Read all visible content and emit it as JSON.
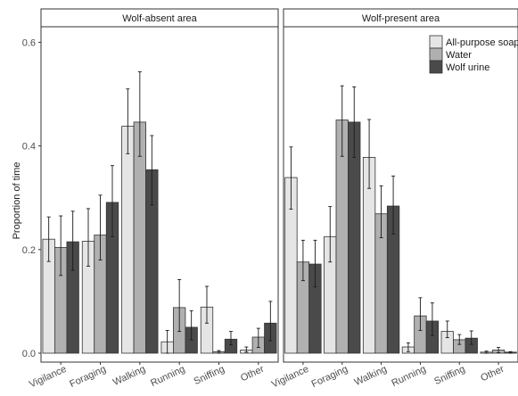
{
  "chart_data": {
    "type": "bar",
    "ylabel": "Proportion of time",
    "xlabel": "",
    "ylim": [
      0,
      0.63
    ],
    "yticks": [
      "0.0",
      "0.2",
      "0.4",
      "0.6"
    ],
    "ytick_values": [
      0,
      0.2,
      0.4,
      0.6
    ],
    "grid": false,
    "legend_position": "top-right",
    "series_names": [
      "All-purpose soap",
      "Water",
      "Wolf urine"
    ],
    "series_colors": [
      "#e5e5e5",
      "#b0b0b0",
      "#4a4a4a"
    ],
    "categories": [
      "Vigilance",
      "Foraging",
      "Walking",
      "Running",
      "Sniffing",
      "Other"
    ],
    "panels": [
      {
        "title": "Wolf-absent area",
        "series": [
          {
            "name": "All-purpose soap",
            "values": [
              0.22,
              0.216,
              0.438,
              0.022,
              0.089,
              0.006
            ],
            "err_low": [
              0.177,
              0.168,
              0.385,
              0.0,
              0.058,
              0.002
            ],
            "err_high": [
              0.263,
              0.279,
              0.51,
              0.044,
              0.129,
              0.012
            ]
          },
          {
            "name": "Water",
            "values": [
              0.204,
              0.228,
              0.446,
              0.088,
              0.003,
              0.031
            ],
            "err_low": [
              0.15,
              0.18,
              0.38,
              0.042,
              0.0,
              0.011
            ],
            "err_high": [
              0.265,
              0.305,
              0.543,
              0.142,
              0.005,
              0.048
            ]
          },
          {
            "name": "Wolf urine",
            "values": [
              0.215,
              0.291,
              0.354,
              0.05,
              0.027,
              0.058
            ],
            "err_low": [
              0.16,
              0.225,
              0.286,
              0.026,
              0.016,
              0.024
            ],
            "err_high": [
              0.274,
              0.362,
              0.42,
              0.082,
              0.042,
              0.1
            ]
          }
        ]
      },
      {
        "title": "Wolf-present area",
        "series": [
          {
            "name": "All-purpose soap",
            "values": [
              0.339,
              0.225,
              0.378,
              0.012,
              0.042,
              0.002
            ],
            "err_low": [
              0.278,
              0.176,
              0.318,
              0.003,
              0.03,
              0.0
            ],
            "err_high": [
              0.398,
              0.283,
              0.451,
              0.02,
              0.062,
              0.004
            ]
          },
          {
            "name": "Water",
            "values": [
              0.176,
              0.45,
              0.269,
              0.072,
              0.026,
              0.006
            ],
            "err_low": [
              0.14,
              0.38,
              0.223,
              0.044,
              0.017,
              0.001
            ],
            "err_high": [
              0.218,
              0.516,
              0.323,
              0.107,
              0.036,
              0.011
            ]
          },
          {
            "name": "Wolf urine",
            "values": [
              0.172,
              0.446,
              0.284,
              0.062,
              0.029,
              0.002
            ],
            "err_low": [
              0.128,
              0.378,
              0.23,
              0.034,
              0.017,
              0.0
            ],
            "err_high": [
              0.218,
              0.514,
              0.342,
              0.097,
              0.043,
              0.003
            ]
          }
        ]
      }
    ]
  }
}
